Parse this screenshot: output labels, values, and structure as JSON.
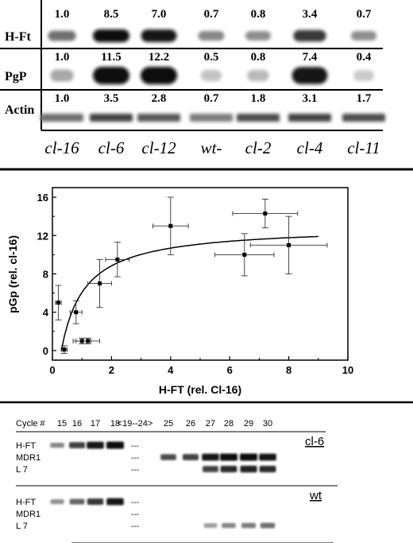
{
  "panel_a": {
    "rows": [
      {
        "label": "H-Ft",
        "values": [
          "1.0",
          "8.5",
          "7.0",
          "0.7",
          "0.8",
          "3.4",
          "0.7"
        ],
        "intensity": [
          0.55,
          1.0,
          0.95,
          0.45,
          0.42,
          0.8,
          0.42
        ]
      },
      {
        "label": "PgP",
        "values": [
          "1.0",
          "11.5",
          "12.2",
          "0.5",
          "0.8",
          "7.4",
          "0.4"
        ],
        "intensity": [
          0.3,
          1.0,
          1.0,
          0.18,
          0.22,
          0.95,
          0.15
        ]
      },
      {
        "label": "Actin",
        "values": [
          "1.0",
          "3.5",
          "2.8",
          "0.7",
          "1.8",
          "3.1",
          "1.7"
        ],
        "intensity": [
          0.55,
          0.75,
          0.65,
          0.5,
          0.7,
          0.75,
          0.7
        ]
      }
    ],
    "lanes": [
      "cl-16",
      "cl-6",
      "cl-12",
      "wt-",
      "cl-2",
      "cl-4",
      "cl-11"
    ]
  },
  "chart_data": {
    "type": "scatter",
    "xlabel": "H-FT (rel. Cl-16)",
    "ylabel": "pGp (rel. cl-16)",
    "xlim": [
      0,
      10
    ],
    "ylim": [
      -1,
      17
    ],
    "xticks": [
      "0",
      "2",
      "4",
      "6",
      "8",
      "10"
    ],
    "yticks": [
      "0",
      "4",
      "8",
      "12",
      "16"
    ],
    "points": [
      {
        "x": 0.2,
        "y": 5.0,
        "xerr": 0.1,
        "yerr": 1.8
      },
      {
        "x": 0.4,
        "y": 0.1,
        "xerr": 0.1,
        "yerr": 0.4
      },
      {
        "x": 0.8,
        "y": 4.0,
        "xerr": 0.2,
        "yerr": 1.2
      },
      {
        "x": 1.0,
        "y": 1.0,
        "xerr": 0.3,
        "yerr": 0.3
      },
      {
        "x": 1.2,
        "y": 1.0,
        "xerr": 0.4,
        "yerr": 0.3
      },
      {
        "x": 1.6,
        "y": 7.0,
        "xerr": 0.4,
        "yerr": 2.5
      },
      {
        "x": 2.2,
        "y": 9.5,
        "xerr": 0.4,
        "yerr": 1.8
      },
      {
        "x": 4.0,
        "y": 13.0,
        "xerr": 0.6,
        "yerr": 3.0
      },
      {
        "x": 6.5,
        "y": 10.0,
        "xerr": 1.0,
        "yerr": 2.2
      },
      {
        "x": 7.2,
        "y": 14.3,
        "xerr": 1.1,
        "yerr": 1.5
      },
      {
        "x": 8.0,
        "y": 11.0,
        "xerr": 1.3,
        "yerr": 3.0
      }
    ],
    "fit": {
      "type": "saturation",
      "ymax": 13.0,
      "k": 0.8,
      "x0": 0.3,
      "x1": 9.0
    }
  },
  "panel_c": {
    "cycle_label": "Cycle #",
    "cycles": [
      "15",
      "16",
      "17",
      "18",
      "<19--24>",
      "25",
      "26",
      "27",
      "28",
      "29",
      "30"
    ],
    "top": {
      "label": "cl-6",
      "rows": [
        {
          "name": "H-FT",
          "bands": [
            0.45,
            0.75,
            0.95,
            1.0,
            0,
            0,
            0,
            0,
            0,
            0,
            0
          ]
        },
        {
          "name": "MDR1",
          "bands": [
            0,
            0,
            0,
            0,
            0,
            0.7,
            0.75,
            0.95,
            1.0,
            1.0,
            0.95
          ]
        },
        {
          "name": "L 7",
          "bands": [
            0,
            0,
            0,
            0,
            0,
            0,
            0,
            0.75,
            0.85,
            0.9,
            0.85
          ]
        }
      ]
    },
    "bottom": {
      "label": "wt",
      "rows": [
        {
          "name": "H-FT",
          "bands": [
            0.4,
            0.6,
            0.8,
            0.95,
            0,
            0,
            0,
            0,
            0,
            0,
            0
          ]
        },
        {
          "name": "MDR1",
          "bands": [
            0,
            0,
            0,
            0,
            0,
            0,
            0,
            0,
            0,
            0,
            0
          ]
        },
        {
          "name": "L 7",
          "bands": [
            0,
            0,
            0,
            0,
            0,
            0,
            0,
            0.35,
            0.45,
            0.5,
            0.55
          ]
        }
      ]
    },
    "dash": "---"
  }
}
